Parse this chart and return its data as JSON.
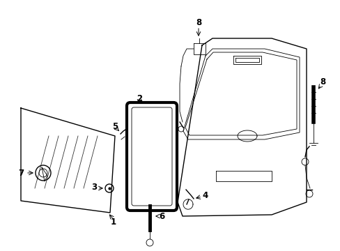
{
  "bg_color": "#ffffff",
  "line_color": "#000000",
  "lw_main": 1.0,
  "lw_thick": 2.0,
  "lw_thin": 0.6,
  "figsize": [
    4.89,
    3.6
  ],
  "dpi": 100
}
